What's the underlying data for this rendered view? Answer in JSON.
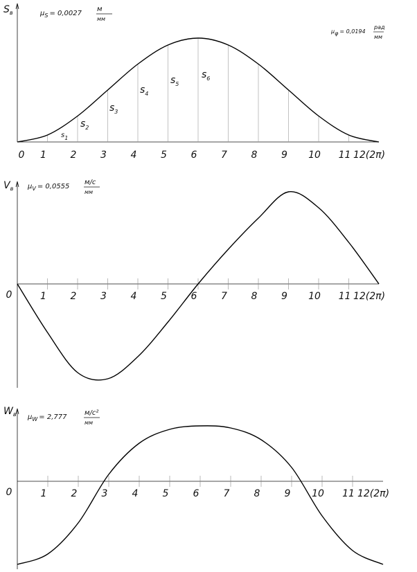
{
  "chart_data": [
    {
      "type": "line",
      "y_label": "S",
      "y_label_sub": "в",
      "scale": {
        "symbol": "μ",
        "sub": "S",
        "value": "= 0,0027",
        "num": "м",
        "den": "мм"
      },
      "scale2": {
        "symbol": "μ",
        "sub": "φ",
        "value": "= 0,0194",
        "num": "рад",
        "den": "мм"
      },
      "segment_labels": [
        {
          "main": "s",
          "sub": "1"
        },
        {
          "main": "s",
          "sub": "2"
        },
        {
          "main": "s",
          "sub": "3"
        },
        {
          "main": "s",
          "sub": "4"
        },
        {
          "main": "s",
          "sub": "5"
        },
        {
          "main": "s",
          "sub": "6"
        }
      ],
      "x": [
        "0",
        "1",
        "2",
        "3",
        "4",
        "5",
        "6",
        "7",
        "8",
        "9",
        "10",
        "11",
        "12(2π)"
      ],
      "series": [
        {
          "color": "#000000",
          "values": [
            0,
            10,
            37.5,
            75,
            112.5,
            140,
            150,
            140,
            112.5,
            75,
            37.5,
            10,
            0
          ]
        }
      ],
      "ylim": [
        0,
        150
      ]
    },
    {
      "type": "line",
      "y_label": "V",
      "y_label_sub": "в",
      "scale": {
        "symbol": "μ",
        "sub": "V",
        "value": "= 0,0555",
        "num": "м/с",
        "den": "мм"
      },
      "x": [
        "0",
        "1",
        "2",
        "3",
        "4",
        "5",
        "6",
        "7",
        "8",
        "9",
        "10",
        "11",
        "12(2π)"
      ],
      "series": [
        {
          "color": "#000000",
          "values": [
            0,
            -70,
            -128,
            -137,
            -105,
            -55,
            0,
            50,
            95,
            133,
            110,
            60,
            0
          ]
        }
      ],
      "ylim": [
        -140,
        140
      ]
    },
    {
      "type": "line",
      "y_label": "W",
      "y_label_sub": "в",
      "scale": {
        "symbol": "μ",
        "sub": "W",
        "value": "= 2,777",
        "num": "м/с²",
        "den": "мм"
      },
      "x": [
        "0",
        "1",
        "2",
        "3",
        "4",
        "5",
        "6",
        "7",
        "8",
        "9",
        "10",
        "11",
        "12(2π)"
      ],
      "series": [
        {
          "color": "#000000",
          "values": [
            -120,
            -105,
            -60,
            10,
            55,
            75,
            80,
            77,
            60,
            20,
            -50,
            -100,
            -120
          ]
        }
      ],
      "ylim": [
        -120,
        82
      ]
    }
  ]
}
